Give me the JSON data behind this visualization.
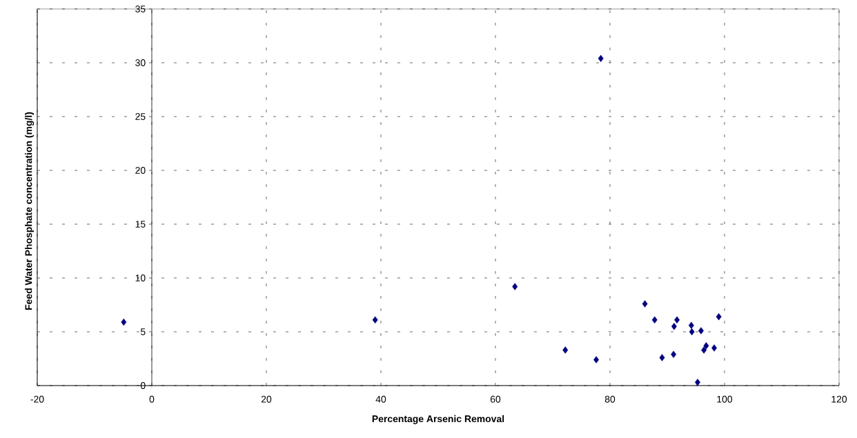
{
  "chart_data": {
    "type": "scatter",
    "xlabel": "Percentage Arsenic Removal",
    "ylabel": "Feed Water Phosphate concentration (mg/l)",
    "x": [
      -4.9,
      39,
      63.4,
      78.4,
      72.2,
      77.6,
      86.1,
      87.8,
      91.7,
      91.2,
      94.2,
      94.3,
      95.9,
      99.0,
      96.8,
      96.4,
      98.2,
      89.1,
      91.1,
      95.3
    ],
    "values": [
      5.9,
      6.1,
      9.2,
      30.4,
      3.3,
      2.4,
      7.6,
      6.1,
      6.1,
      5.5,
      5.6,
      5.0,
      5.1,
      6.4,
      3.7,
      3.3,
      3.5,
      2.6,
      2.9,
      0.3
    ],
    "color": "#000080",
    "marker": "diamond",
    "grid": true,
    "xlim": [
      -20,
      120
    ],
    "xticks": [
      -20,
      0,
      20,
      40,
      60,
      80,
      100,
      120
    ],
    "ylim": [
      0,
      35
    ],
    "yticks": [
      0,
      5,
      10,
      15,
      20,
      25,
      30,
      35
    ]
  }
}
